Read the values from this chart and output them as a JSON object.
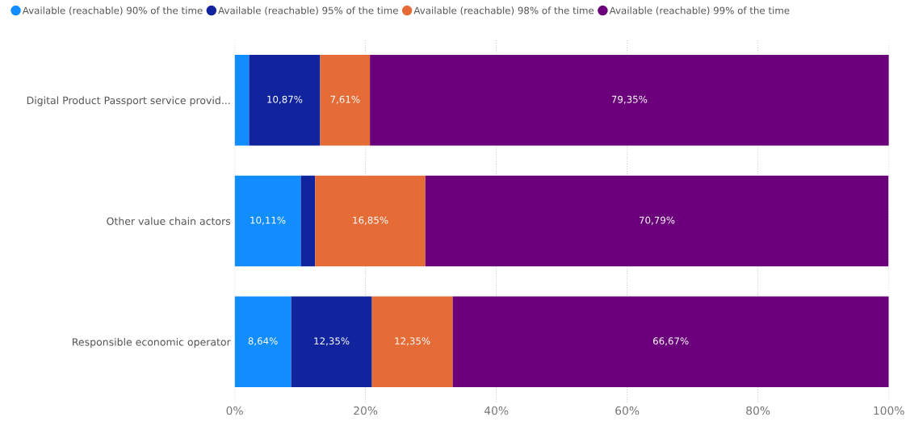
{
  "chart_data": {
    "type": "bar",
    "orientation": "horizontal",
    "stacked": true,
    "categories": [
      "Digital Product Passport service provid...",
      "Other value chain actors",
      "Responsible economic operator"
    ],
    "series": [
      {
        "name": "Available (reachable) 90% of the time",
        "color": "#118dff",
        "values": [
          2.2,
          10.11,
          8.64
        ],
        "value_labels": [
          null,
          "10,11%",
          "8,64%"
        ]
      },
      {
        "name": "Available (reachable) 95% of the time",
        "color": "#12239e",
        "values": [
          10.87,
          2.2,
          12.35
        ],
        "value_labels": [
          "10,87%",
          null,
          "12,35%"
        ]
      },
      {
        "name": "Available (reachable) 98% of the time",
        "color": "#e66c37",
        "values": [
          7.61,
          16.85,
          12.35
        ],
        "value_labels": [
          "7,61%",
          "16,85%",
          "12,35%"
        ]
      },
      {
        "name": "Available (reachable) 99% of the time",
        "color": "#6b007b",
        "values": [
          79.35,
          70.79,
          66.67
        ],
        "value_labels": [
          "79,35%",
          "70,79%",
          "66,67%"
        ]
      }
    ],
    "xlim": [
      0,
      100
    ],
    "xticks": [
      {
        "value": 0,
        "label": "0%"
      },
      {
        "value": 20,
        "label": "20%"
      },
      {
        "value": 40,
        "label": "40%"
      },
      {
        "value": 60,
        "label": "60%"
      },
      {
        "value": 80,
        "label": "80%"
      },
      {
        "value": 100,
        "label": "100%"
      }
    ],
    "grid": "x",
    "legend": "top",
    "marker": "circle"
  }
}
